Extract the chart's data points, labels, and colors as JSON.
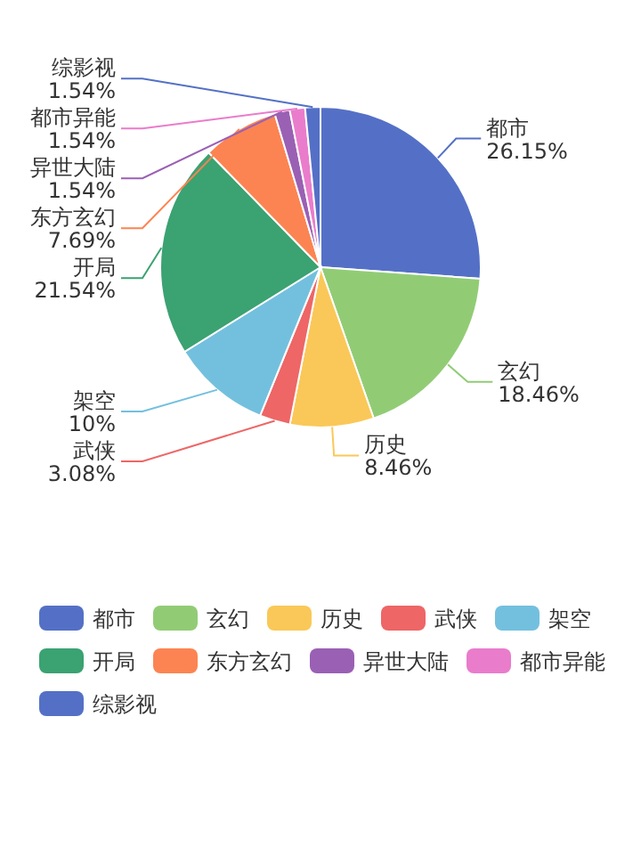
{
  "chart_data": {
    "type": "pie",
    "categories": [
      "都市",
      "玄幻",
      "历史",
      "武侠",
      "架空",
      "开局",
      "东方玄幻",
      "异世大陆",
      "都市异能",
      "综影视"
    ],
    "values": [
      26.15,
      18.46,
      8.46,
      3.08,
      10,
      21.54,
      7.69,
      1.54,
      1.54,
      1.54
    ],
    "colors": [
      "#5470c6",
      "#91cc75",
      "#fac858",
      "#ee6666",
      "#73c0de",
      "#3ba272",
      "#fc8452",
      "#9a60b4",
      "#ea7ccc",
      "#5470c6"
    ],
    "value_labels": [
      "26.15%",
      "18.46%",
      "8.46%",
      "3.08%",
      "10%",
      "21.54%",
      "7.69%",
      "1.54%",
      "1.54%",
      "1.54%"
    ],
    "legend": "bottom"
  }
}
